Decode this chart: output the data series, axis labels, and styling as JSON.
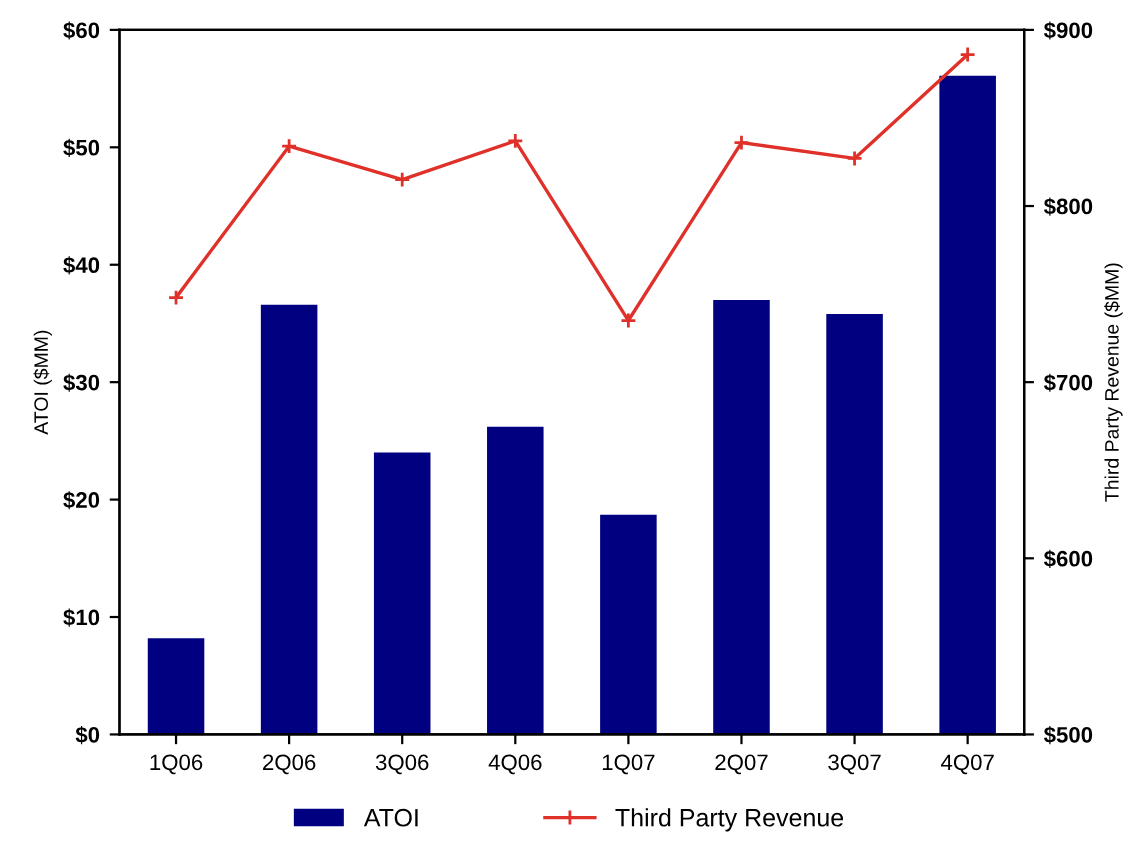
{
  "chart_data": {
    "type": "bar",
    "ylabel": "ATOI ($MM)",
    "y2label": "Third Party Revenue ($MM)",
    "categories": [
      "1Q06",
      "2Q06",
      "3Q06",
      "4Q06",
      "1Q07",
      "2Q07",
      "3Q07",
      "4Q07"
    ],
    "series": [
      {
        "name": "ATOI",
        "color": "#000080",
        "values": [
          8.2,
          36.6,
          24.0,
          26.2,
          18.7,
          37.0,
          35.8,
          56.1
        ]
      },
      {
        "name": "Third Party Revenue",
        "type": "line",
        "axis": "y2",
        "color": "#e0302a",
        "marker": "cross",
        "values": [
          748,
          834,
          815,
          837,
          735,
          836,
          827,
          886
        ]
      }
    ],
    "ylim": [
      0,
      60
    ],
    "yticks": [
      {
        "value": 0,
        "label": "$0"
      },
      {
        "value": 10,
        "label": "$10"
      },
      {
        "value": 20,
        "label": "$20"
      },
      {
        "value": 30,
        "label": "$30"
      },
      {
        "value": 40,
        "label": "$40"
      },
      {
        "value": 50,
        "label": "$50"
      },
      {
        "value": 60,
        "label": "$60"
      }
    ],
    "y2lim": [
      500,
      900
    ],
    "y2ticks": [
      {
        "value": 500,
        "label": "$500"
      },
      {
        "value": 600,
        "label": "$600"
      },
      {
        "value": 700,
        "label": "$700"
      },
      {
        "value": 800,
        "label": "$800"
      },
      {
        "value": 900,
        "label": "$900"
      }
    ],
    "grid": false,
    "legend": "bottom"
  }
}
